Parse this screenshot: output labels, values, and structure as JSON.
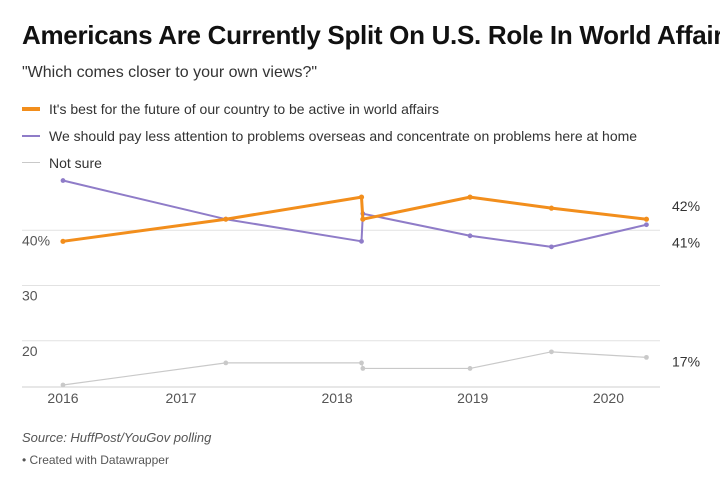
{
  "chart_data": {
    "type": "line",
    "title": "Americans Are Currently Split On U.S. Role In World Affairs",
    "subtitle": "\"Which comes closer to your own views?\"",
    "x_ticks": [
      "2016",
      "2017",
      "2018",
      "2019",
      "2020"
    ],
    "y_ticks": [
      "40%",
      "30",
      "20"
    ],
    "y_tick_values": [
      40,
      30,
      20
    ],
    "x_tick_values": [
      2016,
      2016.87,
      2018.02,
      2019.02,
      2020.02
    ],
    "xlim": [
      2016,
      2020.4
    ],
    "ylim": [
      12,
      50
    ],
    "series": [
      {
        "name": "It's best for the future of our country to be active in world affairs",
        "color": "#f28e1c",
        "x": [
          2016,
          2017.2,
          2018.2,
          2018.21,
          2019.0,
          2019.6,
          2020.3
        ],
        "values": [
          38,
          42,
          46,
          42,
          46,
          44,
          42
        ],
        "end_label": "42%"
      },
      {
        "name": "We should pay less attention to problems overseas and concentrate on problems here at home",
        "color": "#8f7cc8",
        "x": [
          2016,
          2017.2,
          2018.2,
          2018.21,
          2019.0,
          2019.6,
          2020.3
        ],
        "values": [
          49,
          42,
          38,
          43,
          39,
          37,
          41
        ],
        "end_label": "41%"
      },
      {
        "name": "Not sure",
        "color": "#c9c9c9",
        "x": [
          2016,
          2017.2,
          2018.2,
          2018.21,
          2019.0,
          2019.6,
          2020.3
        ],
        "values": [
          12,
          16,
          16,
          15,
          15,
          18,
          17
        ],
        "end_label": "17%"
      }
    ],
    "legend_position": "top-left",
    "grid": true
  },
  "source": "Source: HuffPost/YouGov polling",
  "credit": "• Created with Datawrapper"
}
